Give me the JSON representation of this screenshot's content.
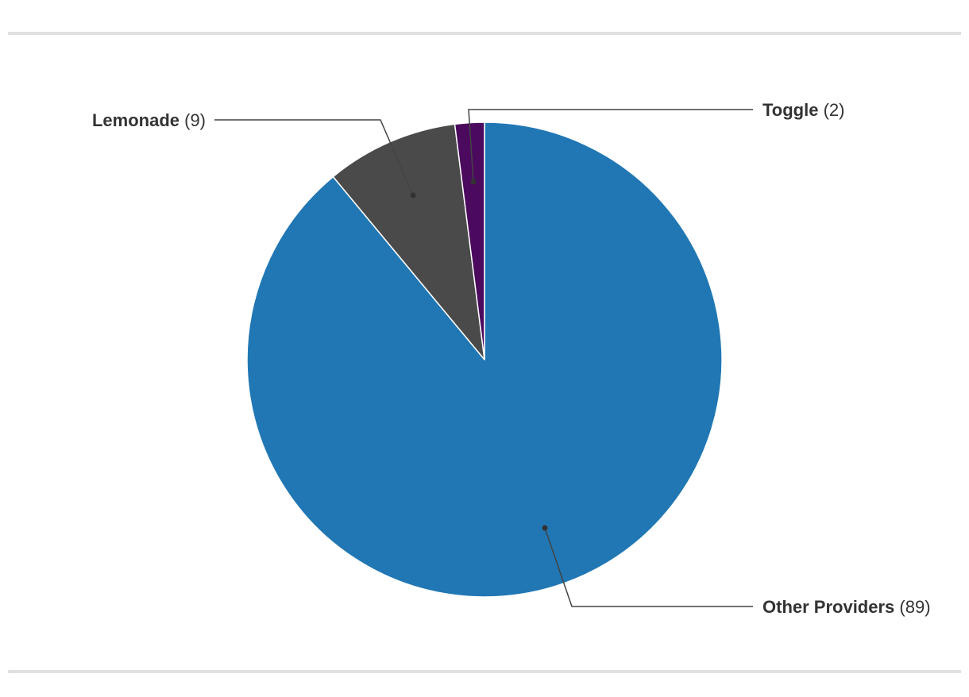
{
  "chart_data": {
    "type": "pie",
    "slices": [
      {
        "label": "Other Providers",
        "value": 89,
        "color": "#2077b4"
      },
      {
        "label": "Lemonade",
        "value": 9,
        "color": "#4a4a4a"
      },
      {
        "label": "Toggle",
        "value": 2,
        "color": "#4b0a5e"
      }
    ],
    "legend": "callout labels outside pie"
  }
}
